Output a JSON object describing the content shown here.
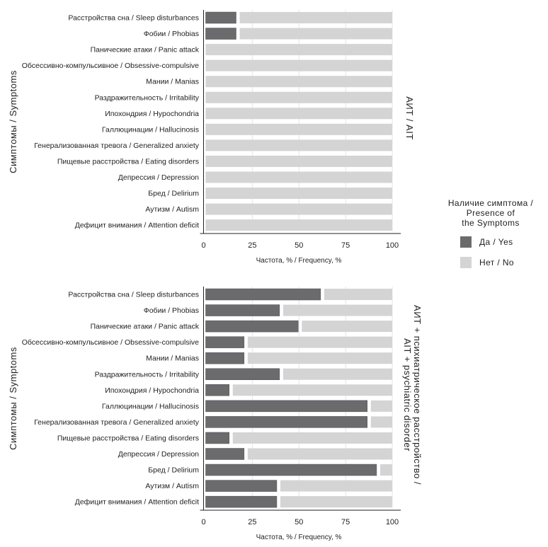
{
  "chart_data": [
    {
      "type": "bar",
      "orientation": "horizontal",
      "stacked": true,
      "facet_label": "АИТ / AIT",
      "xlabel": "Частота, % / Frequency, %",
      "ylabel": "Симптомы / Symptoms",
      "xlim": [
        0,
        100
      ],
      "xticks": [
        "0",
        "25",
        "50",
        "75",
        "100"
      ],
      "categories": [
        "Расстройства сна / Sleep disturbances",
        "Фобии / Phobias",
        "Панические атаки / Panic attack",
        "Обсессивно-компульсивное / Obsessive-compulsive",
        "Мании / Manias",
        "Раздражительность / Irritability",
        "Ипохондрия / Hypochondria",
        "Галлюцинации / Hallucinosis",
        "Генерализованная тревога / Generalized anxiety",
        "Пищевые расстройства / Eating disorders",
        "Депрессия / Depression",
        "Бред / Delirium",
        "Аутизм / Autism",
        "Дефицит внимания / Attention deficit"
      ],
      "series": [
        {
          "name": "Да / Yes",
          "values": [
            16.7,
            16.7,
            0,
            0,
            0,
            0,
            0,
            0,
            0,
            0,
            0,
            0,
            0,
            0
          ]
        },
        {
          "name": "Нет / No",
          "values": [
            83.3,
            83.3,
            100,
            100,
            100,
            100,
            100,
            100,
            100,
            100,
            100,
            100,
            100,
            100
          ]
        }
      ]
    },
    {
      "type": "bar",
      "orientation": "horizontal",
      "stacked": true,
      "facet_label": "АИТ + психиатрическое расстройство / AIT + psychiatric disorder",
      "facet_lines": [
        "АИТ + психиатрическое расстройство /",
        "AIT + psychiatric disorder"
      ],
      "xlabel": "Частота, % / Frequency, %",
      "ylabel": "Симптомы / Symptoms",
      "xlim": [
        0,
        100
      ],
      "xticks": [
        "0",
        "25",
        "50",
        "75",
        "100"
      ],
      "categories": [
        "Расстройства сна / Sleep disturbances",
        "Фобии / Phobias",
        "Панические атаки / Panic attack",
        "Обсессивно-компульсивное / Obsessive-compulsive",
        "Мании / Manias",
        "Раздражительность / Irritability",
        "Ипохондрия / Hypochondria",
        "Галлюцинации / Hallucinosis",
        "Генерализованная тревога / Generalized anxiety",
        "Пищевые расстройства / Eating disorders",
        "Депрессия / Depression",
        "Бред / Delirium",
        "Аутизм / Autism",
        "Дефицит внимания / Attention deficit"
      ],
      "series": [
        {
          "name": "Да / Yes",
          "values": [
            62,
            40,
            50,
            21,
            21,
            40,
            13,
            87,
            87,
            13,
            21,
            92,
            38.5,
            38.5
          ]
        },
        {
          "name": "Нет / No",
          "values": [
            38,
            60,
            50,
            79,
            79,
            60,
            87,
            13,
            13,
            87,
            79,
            8,
            61.5,
            61.5
          ]
        }
      ]
    }
  ],
  "legend": {
    "title_lines": [
      "Наличие симптома /",
      "Presence of",
      "the Symptoms"
    ],
    "items": [
      {
        "label": "Да / Yes",
        "color": "#6b6b6e"
      },
      {
        "label": "Нет / No",
        "color": "#d4d4d4"
      }
    ],
    "placement": "right"
  }
}
